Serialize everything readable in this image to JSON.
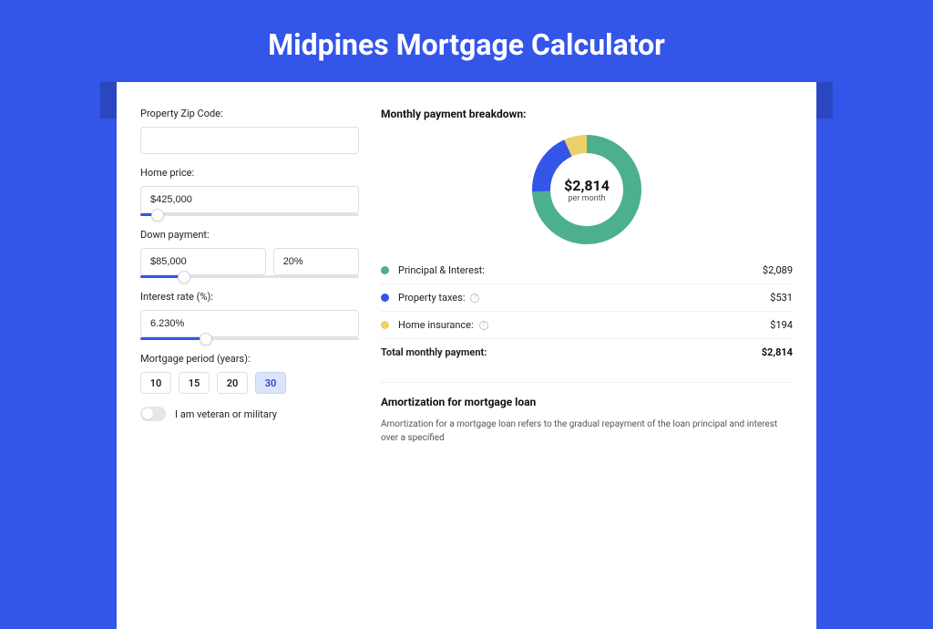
{
  "page": {
    "title": "Midpines Mortgage Calculator",
    "bg_color": "#3355e8",
    "bar_color": "#2b47c0",
    "card_bg": "#ffffff"
  },
  "form": {
    "zip_label": "Property Zip Code:",
    "zip_value": "",
    "home_price_label": "Home price:",
    "home_price_value": "$425,000",
    "home_price_slider_pct": 8,
    "down_label": "Down payment:",
    "down_value": "$85,000",
    "down_pct_value": "20%",
    "down_slider_pct": 20,
    "rate_label": "Interest rate (%):",
    "rate_value": "6.230%",
    "rate_slider_pct": 30,
    "period_label": "Mortgage period (years):",
    "periods": [
      "10",
      "15",
      "20",
      "30"
    ],
    "period_active_index": 3,
    "veteran_label": "I am veteran or military",
    "veteran_on": false
  },
  "breakdown": {
    "title": "Monthly payment breakdown:",
    "donut": {
      "amount": "$2,814",
      "sub": "per month",
      "segments": [
        {
          "label": "Principal & Interest",
          "value": 2089,
          "color": "#4cb08c",
          "pct": 74.2
        },
        {
          "label": "Property taxes",
          "value": 531,
          "color": "#3355e8",
          "pct": 18.9
        },
        {
          "label": "Home insurance",
          "value": 194,
          "color": "#ebd06b",
          "pct": 6.9
        }
      ],
      "ring_thickness": 20,
      "size": 120,
      "bg": "#ffffff"
    },
    "rows": [
      {
        "dot": "#4cb08c",
        "label": "Principal & Interest:",
        "value": "$2,089",
        "info": false
      },
      {
        "dot": "#3355e8",
        "label": "Property taxes:",
        "value": "$531",
        "info": true
      },
      {
        "dot": "#ebd06b",
        "label": "Home insurance:",
        "value": "$194",
        "info": true
      }
    ],
    "total_label": "Total monthly payment:",
    "total_value": "$2,814"
  },
  "amort": {
    "title": "Amortization for mortgage loan",
    "text": "Amortization for a mortgage loan refers to the gradual repayment of the loan principal and interest over a specified"
  }
}
